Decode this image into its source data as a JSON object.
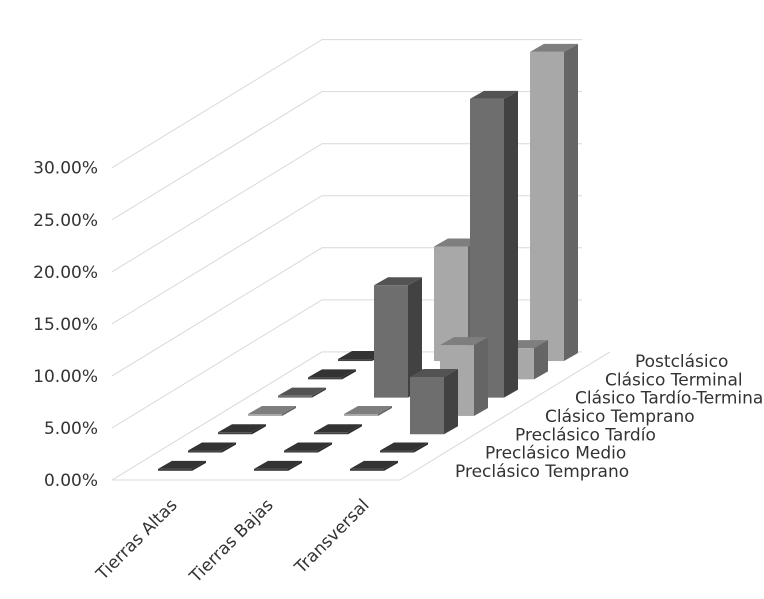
{
  "chart_data": {
    "type": "bar",
    "subtype": "3d-column",
    "title": "",
    "xlabel": "",
    "ylabel": "",
    "ylim": [
      0,
      0.35
    ],
    "y_ticks": [
      "0.00%",
      "5.00%",
      "10.00%",
      "15.00%",
      "20.00%",
      "25.00%",
      "30.00%"
    ],
    "grid": true,
    "categories": [
      "Tierras Altas",
      "Tierras Bajas",
      "Transversal"
    ],
    "series": [
      {
        "name": "Preclásico Temprano",
        "values": [
          0.0,
          0.0,
          0.0
        ]
      },
      {
        "name": "Preclásico Medio",
        "values": [
          0.0,
          0.0,
          0.0
        ]
      },
      {
        "name": "Preclásico Tardío",
        "values": [
          0.0,
          0.0,
          0.055
        ]
      },
      {
        "name": "Clásico Temprano",
        "values": [
          0.0,
          0.0,
          0.068
        ]
      },
      {
        "name": "Clásico Tardío-Terminal",
        "values": [
          0.0,
          0.108,
          0.287
        ]
      },
      {
        "name": "Clásico Terminal",
        "values": [
          0.0,
          0.0,
          0.03
        ]
      },
      {
        "name": "Postclásico",
        "values": [
          0.0,
          0.11,
          0.297
        ]
      }
    ],
    "colors": {
      "light_bar": "#a8a8a8",
      "dark_bar": "#6e6e6e",
      "flat_bar": "#444444",
      "grid": "#d9d9d9"
    }
  }
}
